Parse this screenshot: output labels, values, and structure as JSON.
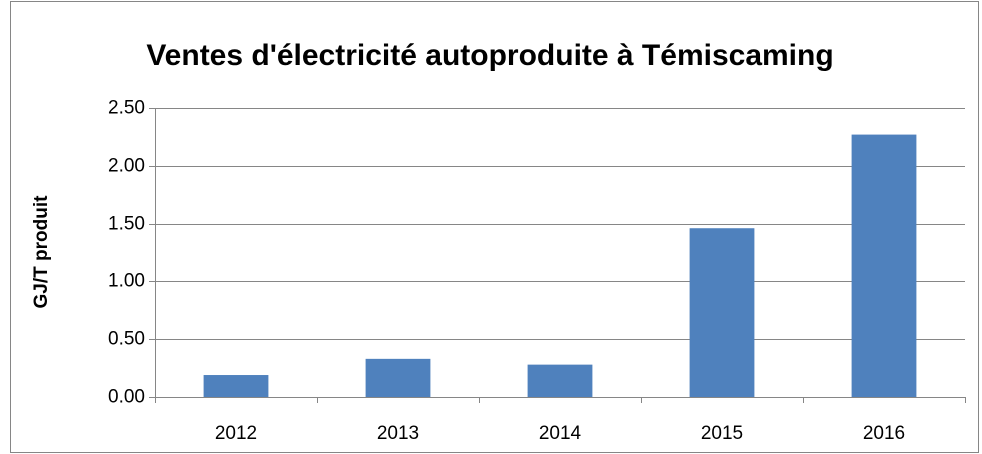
{
  "chart_data": {
    "type": "bar",
    "title": "Ventes d'électricité autoproduite à Témiscaming",
    "y_label": "GJ/T produit",
    "categories": [
      "2012",
      "2013",
      "2014",
      "2015",
      "2016"
    ],
    "values": [
      0.19,
      0.33,
      0.28,
      1.46,
      2.27
    ],
    "color": "#4f81bd",
    "ylim": [
      0,
      2.5
    ],
    "yticks": [
      {
        "value": 0,
        "label": "0.00"
      },
      {
        "value": 0.5,
        "label": "0.50"
      },
      {
        "value": 1,
        "label": "1.00"
      },
      {
        "value": 1.5,
        "label": "1.50"
      },
      {
        "value": 2,
        "label": "2.00"
      },
      {
        "value": 2.5,
        "label": "2.50"
      }
    ],
    "grid": true
  }
}
